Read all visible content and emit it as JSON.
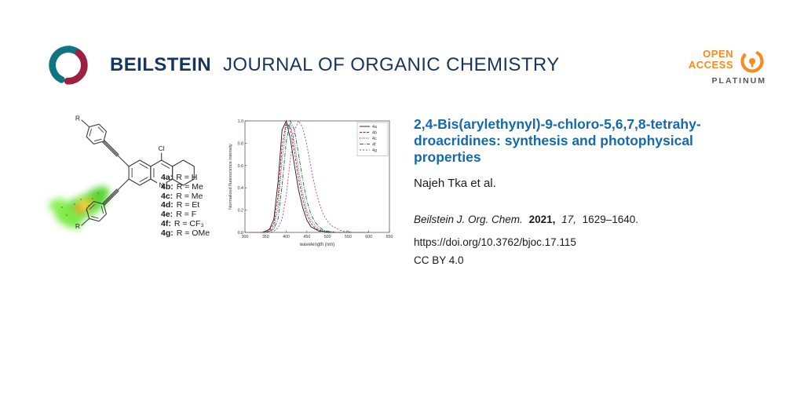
{
  "header": {
    "brand": "BEILSTEIN",
    "journal_name": "JOURNAL OF ORGANIC CHEMISTRY",
    "open_access": {
      "line1": "OPEN",
      "line2": "ACCESS",
      "tier": "PLATINUM"
    }
  },
  "colors": {
    "brand_navy": "#17365d",
    "title_blue": "#1569ad",
    "open_access_orange": "#f68b1f",
    "platinum_gray": "#55565a",
    "logo_teal": "#0e7584",
    "logo_crimson": "#9e1f3f"
  },
  "abstract": {
    "molecule_labels": {
      "cl": "Cl",
      "n": "N",
      "r_top": "R",
      "r_bottom": "R"
    },
    "compounds": [
      {
        "id": "4a:",
        "substituent": "R = H"
      },
      {
        "id": "4b:",
        "substituent": "R = Me"
      },
      {
        "id": "4c:",
        "substituent": "R = Me"
      },
      {
        "id": "4d:",
        "substituent": "R = Et"
      },
      {
        "id": "4e:",
        "substituent": "R = F"
      },
      {
        "id": "4f:",
        "substituent": "R = CF₃"
      },
      {
        "id": "4g:",
        "substituent": "R = OMe"
      }
    ]
  },
  "chart_data": {
    "type": "line",
    "title": "",
    "xlabel": "wavelength (nm)",
    "ylabel": "Normalized fluorescence intensity",
    "xlim": [
      300,
      650
    ],
    "ylim": [
      0,
      1.0
    ],
    "x": [
      310,
      320,
      330,
      340,
      350,
      360,
      370,
      380,
      390,
      400,
      410,
      420,
      430,
      440,
      450,
      460,
      470,
      480,
      490,
      500,
      510,
      520,
      530,
      540,
      550,
      560,
      570,
      580,
      590,
      600
    ],
    "series": [
      {
        "name": "4a",
        "color": "#1a1a1a",
        "dash": "",
        "values": [
          0,
          0,
          0,
          0,
          0.01,
          0.03,
          0.12,
          0.45,
          0.92,
          1.0,
          0.84,
          0.6,
          0.38,
          0.22,
          0.11,
          0.05,
          0.03,
          0.01,
          0.01,
          0,
          0,
          0,
          0,
          0,
          0,
          0,
          0,
          0,
          0,
          0
        ]
      },
      {
        "name": "4b",
        "color": "#c01818",
        "dash": "3 1.5",
        "values": [
          0,
          0,
          0,
          0,
          0,
          0.02,
          0.08,
          0.32,
          0.78,
          0.99,
          0.93,
          0.72,
          0.48,
          0.29,
          0.16,
          0.08,
          0.04,
          0.02,
          0.01,
          0.01,
          0,
          0,
          0,
          0,
          0,
          0,
          0,
          0,
          0,
          0
        ]
      },
      {
        "name": "4c",
        "color": "#1a2a7a",
        "dash": "1 1.6",
        "values": [
          0,
          0,
          0,
          0,
          0,
          0.01,
          0.05,
          0.22,
          0.65,
          0.96,
          0.97,
          0.8,
          0.56,
          0.35,
          0.2,
          0.11,
          0.06,
          0.03,
          0.01,
          0.01,
          0,
          0,
          0,
          0,
          0,
          0,
          0,
          0,
          0,
          0
        ]
      },
      {
        "name": "4f",
        "color": "#1f6e46",
        "dash": "5 1.5 1 1.5",
        "values": [
          0,
          0,
          0,
          0,
          0,
          0.01,
          0.03,
          0.12,
          0.42,
          0.82,
          1.0,
          0.92,
          0.7,
          0.47,
          0.28,
          0.16,
          0.09,
          0.05,
          0.02,
          0.01,
          0.01,
          0,
          0,
          0,
          0,
          0,
          0,
          0,
          0,
          0
        ]
      },
      {
        "name": "4g",
        "color": "#b040b0",
        "dash": "2 2",
        "values": [
          0,
          0,
          0,
          0,
          0,
          0,
          0.01,
          0.04,
          0.12,
          0.33,
          0.66,
          0.92,
          1.0,
          0.94,
          0.78,
          0.58,
          0.4,
          0.26,
          0.16,
          0.1,
          0.06,
          0.04,
          0.02,
          0.01,
          0.01,
          0,
          0,
          0,
          0,
          0
        ]
      }
    ],
    "legend_position": "top-right",
    "grid": false
  },
  "article": {
    "title_lines": [
      "2,4-Bis(arylethynyl)-9-chloro-5,6,7,8-tetrahy-",
      "droacridines: synthesis and photophysical",
      "properties"
    ],
    "authors": "Najeh Tka et al.",
    "citation": {
      "journal": "Beilstein J. Org. Chem.",
      "year": "2021,",
      "volume": "17,",
      "pages": "1629–1640."
    },
    "doi": "https://doi.org/10.3762/bjoc.17.115",
    "license": "CC BY 4.0"
  }
}
